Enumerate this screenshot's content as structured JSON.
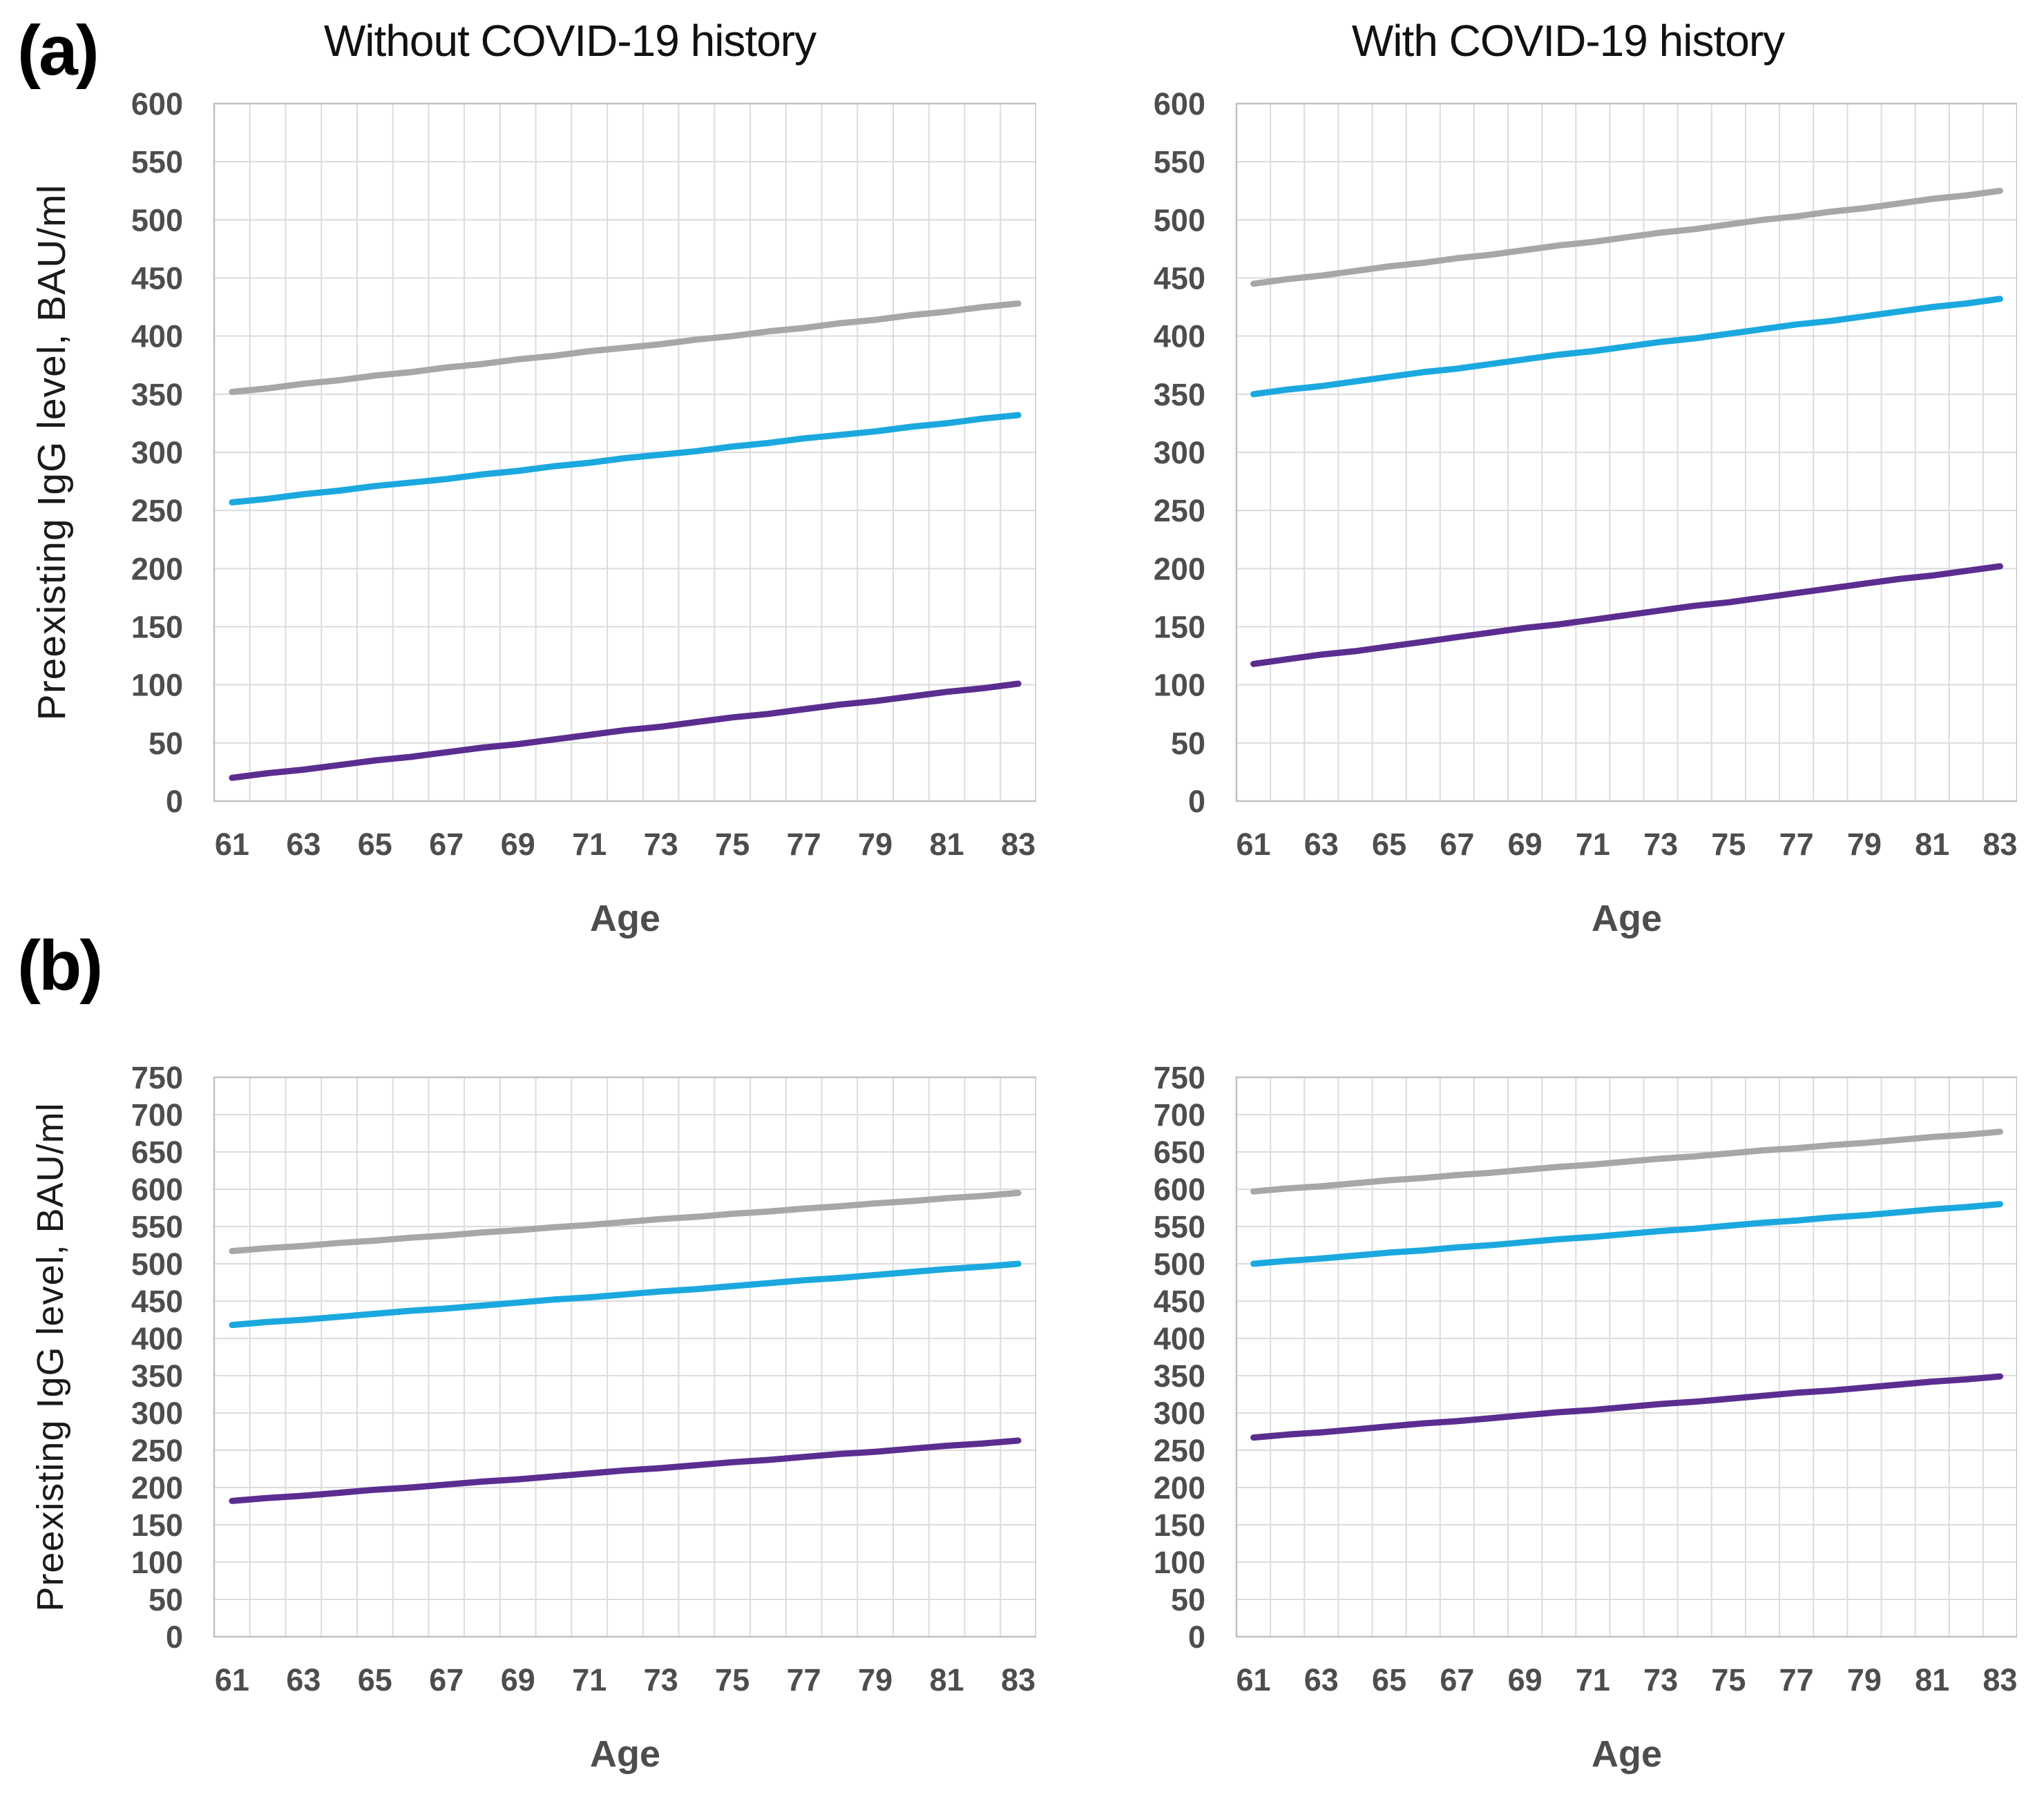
{
  "figure": {
    "panel_labels": [
      "(a)",
      "(b)"
    ],
    "colors": {
      "gray_line": "#A7A7A7",
      "cyan_line": "#1BA8DF",
      "purple_line": "#5B2D90",
      "gridline": "#DCDCDC",
      "plot_border": "#C0C0C0",
      "tick_text": "#4D4D4D",
      "title_text": "#111111"
    }
  },
  "chart_data": [
    {
      "type": "line",
      "panel": "a",
      "position": "left",
      "title": "Without COVID-19 history",
      "ylabel": "Preexisting IgG level, BAU/ml",
      "xlabel": "Age",
      "ylim": [
        0,
        600
      ],
      "ytick_step": 50,
      "grid": true,
      "legend": "none",
      "x": [
        61,
        62,
        63,
        64,
        65,
        66,
        67,
        68,
        69,
        70,
        71,
        72,
        73,
        74,
        75,
        76,
        77,
        78,
        79,
        80,
        81,
        82,
        83
      ],
      "xtick_labels": [
        61,
        63,
        65,
        67,
        69,
        71,
        73,
        75,
        77,
        79,
        81,
        83
      ],
      "series": [
        {
          "name": "gray-upper",
          "color": "#A7A7A7",
          "values": [
            352,
            355,
            359,
            362,
            366,
            369,
            373,
            376,
            380,
            383,
            387,
            390,
            393,
            397,
            400,
            404,
            407,
            411,
            414,
            418,
            421,
            425,
            428
          ]
        },
        {
          "name": "cyan-middle",
          "color": "#1BA8DF",
          "values": [
            257,
            260,
            264,
            267,
            271,
            274,
            277,
            281,
            284,
            288,
            291,
            295,
            298,
            301,
            305,
            308,
            312,
            315,
            318,
            322,
            325,
            329,
            332
          ]
        },
        {
          "name": "purple-lower",
          "color": "#5B2D90",
          "values": [
            20,
            24,
            27,
            31,
            35,
            38,
            42,
            46,
            49,
            53,
            57,
            61,
            64,
            68,
            72,
            75,
            79,
            83,
            86,
            90,
            94,
            97,
            101
          ]
        }
      ]
    },
    {
      "type": "line",
      "panel": "a",
      "position": "right",
      "title": "With COVID-19 history",
      "xlabel": "Age",
      "ylim": [
        0,
        600
      ],
      "ytick_step": 50,
      "grid": true,
      "legend": "none",
      "x": [
        61,
        62,
        63,
        64,
        65,
        66,
        67,
        68,
        69,
        70,
        71,
        72,
        73,
        74,
        75,
        76,
        77,
        78,
        79,
        80,
        81,
        82,
        83
      ],
      "xtick_labels": [
        61,
        63,
        65,
        67,
        69,
        71,
        73,
        75,
        77,
        79,
        81,
        83
      ],
      "series": [
        {
          "name": "gray-upper",
          "color": "#A7A7A7",
          "values": [
            445,
            449,
            452,
            456,
            460,
            463,
            467,
            470,
            474,
            478,
            481,
            485,
            489,
            492,
            496,
            500,
            503,
            507,
            510,
            514,
            518,
            521,
            525
          ]
        },
        {
          "name": "cyan-middle",
          "color": "#1BA8DF",
          "values": [
            350,
            354,
            357,
            361,
            365,
            369,
            372,
            376,
            380,
            384,
            387,
            391,
            395,
            398,
            402,
            406,
            410,
            413,
            417,
            421,
            425,
            428,
            432
          ]
        },
        {
          "name": "purple-lower",
          "color": "#5B2D90",
          "values": [
            118,
            122,
            126,
            129,
            133,
            137,
            141,
            145,
            149,
            152,
            156,
            160,
            164,
            168,
            171,
            175,
            179,
            183,
            187,
            191,
            194,
            198,
            202
          ]
        }
      ]
    },
    {
      "type": "line",
      "panel": "b",
      "position": "left",
      "ylabel": "Preexisting IgG level, BAU/ml",
      "xlabel": "Age",
      "ylim": [
        0,
        750
      ],
      "ytick_step": 50,
      "grid": true,
      "legend": "none",
      "x": [
        61,
        62,
        63,
        64,
        65,
        66,
        67,
        68,
        69,
        70,
        71,
        72,
        73,
        74,
        75,
        76,
        77,
        78,
        79,
        80,
        81,
        82,
        83
      ],
      "xtick_labels": [
        61,
        63,
        65,
        67,
        69,
        71,
        73,
        75,
        77,
        79,
        81,
        83
      ],
      "series": [
        {
          "name": "gray-upper",
          "color": "#A7A7A7",
          "values": [
            517,
            521,
            524,
            528,
            531,
            535,
            538,
            542,
            545,
            549,
            552,
            556,
            560,
            563,
            567,
            570,
            574,
            577,
            581,
            584,
            588,
            591,
            595
          ]
        },
        {
          "name": "cyan-middle",
          "color": "#1BA8DF",
          "values": [
            418,
            422,
            425,
            429,
            433,
            437,
            440,
            444,
            448,
            452,
            455,
            459,
            463,
            466,
            470,
            474,
            478,
            481,
            485,
            489,
            493,
            496,
            500
          ]
        },
        {
          "name": "purple-lower",
          "color": "#5B2D90",
          "values": [
            182,
            186,
            189,
            193,
            197,
            200,
            204,
            208,
            211,
            215,
            219,
            223,
            226,
            230,
            234,
            237,
            241,
            245,
            248,
            252,
            256,
            259,
            263
          ]
        }
      ]
    },
    {
      "type": "line",
      "panel": "b",
      "position": "right",
      "xlabel": "Age",
      "ylim": [
        0,
        750
      ],
      "ytick_step": 50,
      "grid": true,
      "legend": "none",
      "x": [
        61,
        62,
        63,
        64,
        65,
        66,
        67,
        68,
        69,
        70,
        71,
        72,
        73,
        74,
        75,
        76,
        77,
        78,
        79,
        80,
        81,
        82,
        83
      ],
      "xtick_labels": [
        61,
        63,
        65,
        67,
        69,
        71,
        73,
        75,
        77,
        79,
        81,
        83
      ],
      "series": [
        {
          "name": "gray-upper",
          "color": "#A7A7A7",
          "values": [
            597,
            601,
            604,
            608,
            612,
            615,
            619,
            622,
            626,
            630,
            633,
            637,
            641,
            644,
            648,
            652,
            655,
            659,
            662,
            666,
            670,
            673,
            677
          ]
        },
        {
          "name": "cyan-middle",
          "color": "#1BA8DF",
          "values": [
            500,
            504,
            507,
            511,
            515,
            518,
            522,
            525,
            529,
            533,
            536,
            540,
            544,
            547,
            551,
            555,
            558,
            562,
            565,
            569,
            573,
            576,
            580
          ]
        },
        {
          "name": "purple-lower",
          "color": "#5B2D90",
          "values": [
            267,
            271,
            274,
            278,
            282,
            286,
            289,
            293,
            297,
            301,
            304,
            308,
            312,
            315,
            319,
            323,
            327,
            330,
            334,
            338,
            342,
            345,
            349
          ]
        }
      ]
    }
  ]
}
